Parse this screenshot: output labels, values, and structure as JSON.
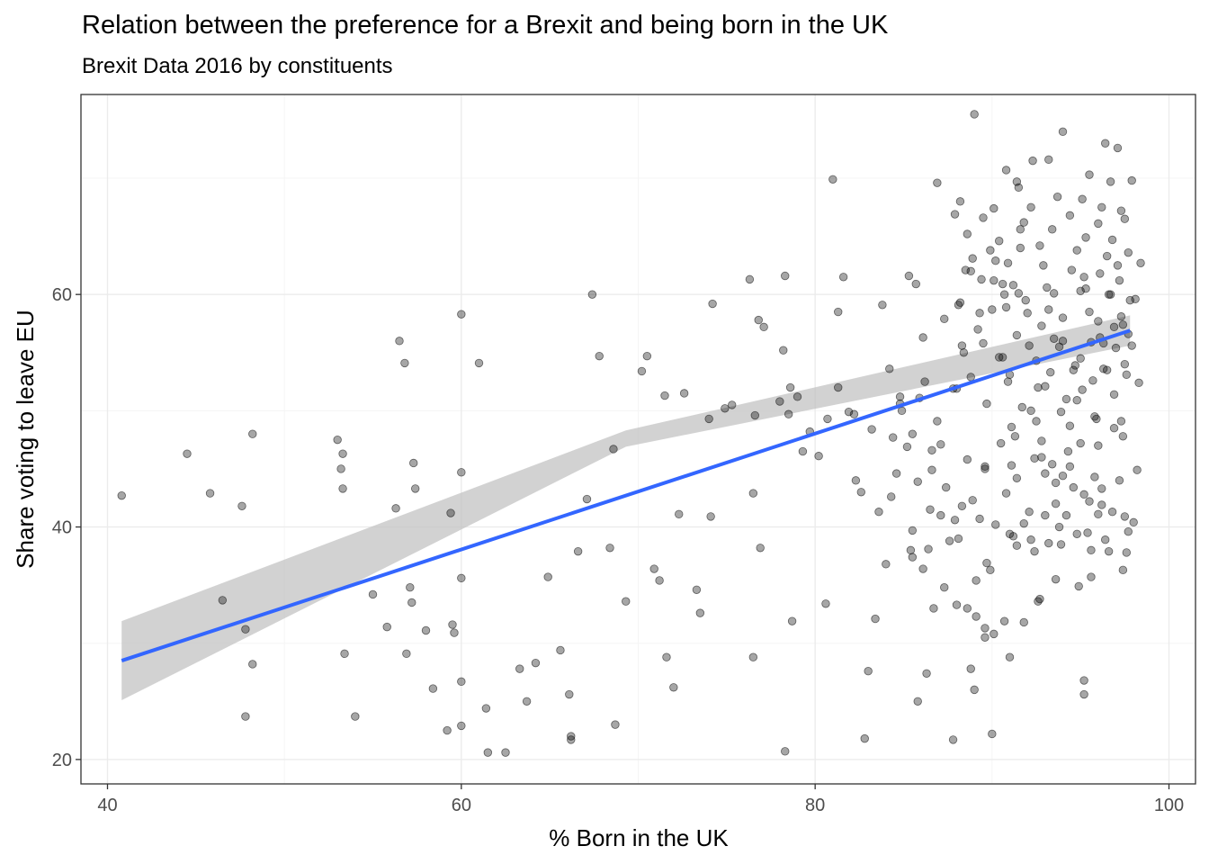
{
  "chart_data": {
    "type": "scatter",
    "title": "Relation between the preference for a Brexit and being born in the UK",
    "subtitle": "Brexit Data 2016 by constituents",
    "xlabel": "% Born in the UK",
    "ylabel": "Share voting to leave EU",
    "xlim": [
      38.5,
      101.5
    ],
    "ylim": [
      17.9,
      77.2
    ],
    "x_ticks": [
      40,
      60,
      80,
      100
    ],
    "y_ticks": [
      20,
      40,
      60
    ],
    "x_tick_labels": [
      "40",
      "60",
      "80",
      "100"
    ],
    "y_tick_labels": [
      "20",
      "40",
      "60"
    ],
    "grid": true,
    "legend": "none",
    "colors": {
      "points": "#000000",
      "points_opacity": 0.35,
      "trend_line": "#3366FF",
      "confidence_band": "#bfbfbf",
      "grid_major": "#ebebeb",
      "grid_minor": "#f5f5f5",
      "panel_border": "#333333"
    },
    "trend": {
      "method": "linear",
      "x_range": [
        40.8,
        97.8
      ],
      "y_start": 28.5,
      "y_end": 56.9,
      "se_low_start": 25.1,
      "se_high_start": 31.9,
      "se_low_mid": 46.9,
      "se_high_mid": 48.3,
      "se_low_end": 55.6,
      "se_high_end": 58.2
    },
    "points": [
      [
        40.8,
        42.7
      ],
      [
        44.5,
        46.3
      ],
      [
        45.8,
        42.9
      ],
      [
        46.5,
        33.7
      ],
      [
        47.6,
        41.8
      ],
      [
        47.8,
        31.2
      ],
      [
        47.8,
        23.7
      ],
      [
        48.2,
        48.0
      ],
      [
        48.2,
        28.2
      ],
      [
        53.0,
        47.5
      ],
      [
        53.3,
        46.3
      ],
      [
        53.2,
        45.0
      ],
      [
        53.3,
        43.3
      ],
      [
        53.4,
        29.1
      ],
      [
        54.0,
        23.7
      ],
      [
        55.0,
        34.2
      ],
      [
        55.8,
        31.4
      ],
      [
        56.3,
        41.6
      ],
      [
        56.5,
        56.0
      ],
      [
        56.8,
        54.1
      ],
      [
        56.9,
        29.1
      ],
      [
        57.1,
        34.8
      ],
      [
        57.2,
        33.5
      ],
      [
        57.3,
        45.5
      ],
      [
        57.4,
        43.3
      ],
      [
        58.0,
        31.1
      ],
      [
        58.4,
        26.1
      ],
      [
        59.2,
        22.5
      ],
      [
        59.4,
        41.2
      ],
      [
        59.5,
        31.6
      ],
      [
        59.6,
        30.9
      ],
      [
        60.0,
        58.3
      ],
      [
        60.0,
        44.7
      ],
      [
        60.0,
        35.6
      ],
      [
        60.0,
        26.7
      ],
      [
        60.0,
        22.9
      ],
      [
        61.0,
        54.1
      ],
      [
        61.4,
        24.4
      ],
      [
        61.5,
        20.6
      ],
      [
        62.5,
        20.6
      ],
      [
        63.3,
        27.8
      ],
      [
        63.7,
        25.0
      ],
      [
        64.2,
        28.3
      ],
      [
        64.9,
        35.7
      ],
      [
        65.6,
        29.4
      ],
      [
        66.1,
        25.6
      ],
      [
        66.2,
        22.0
      ],
      [
        66.2,
        21.7
      ],
      [
        66.6,
        37.9
      ],
      [
        67.1,
        42.4
      ],
      [
        67.4,
        60.0
      ],
      [
        67.8,
        54.7
      ],
      [
        68.4,
        38.2
      ],
      [
        68.6,
        46.7
      ],
      [
        68.7,
        23.0
      ],
      [
        69.3,
        33.6
      ],
      [
        70.2,
        53.4
      ],
      [
        70.5,
        54.7
      ],
      [
        70.9,
        36.4
      ],
      [
        71.2,
        35.4
      ],
      [
        71.5,
        51.3
      ],
      [
        71.6,
        28.8
      ],
      [
        72.0,
        26.2
      ],
      [
        72.3,
        41.1
      ],
      [
        72.6,
        51.5
      ],
      [
        73.3,
        34.6
      ],
      [
        73.5,
        32.6
      ],
      [
        74.0,
        49.3
      ],
      [
        74.1,
        40.9
      ],
      [
        74.2,
        59.2
      ],
      [
        74.9,
        50.2
      ],
      [
        75.3,
        50.5
      ],
      [
        76.3,
        61.3
      ],
      [
        76.5,
        42.9
      ],
      [
        76.6,
        49.6
      ],
      [
        76.5,
        28.8
      ],
      [
        76.8,
        57.8
      ],
      [
        76.9,
        38.2
      ],
      [
        77.1,
        57.2
      ],
      [
        78.0,
        50.8
      ],
      [
        78.2,
        55.2
      ],
      [
        78.3,
        61.6
      ],
      [
        78.3,
        20.7
      ],
      [
        78.5,
        49.7
      ],
      [
        78.6,
        52.0
      ],
      [
        78.7,
        31.9
      ],
      [
        79.0,
        51.2
      ],
      [
        79.3,
        46.5
      ],
      [
        79.7,
        48.2
      ],
      [
        80.2,
        46.1
      ],
      [
        80.6,
        33.4
      ],
      [
        80.7,
        49.3
      ],
      [
        81.0,
        69.9
      ],
      [
        81.3,
        52.0
      ],
      [
        81.3,
        58.5
      ],
      [
        81.6,
        61.5
      ],
      [
        81.9,
        49.9
      ],
      [
        82.2,
        49.7
      ],
      [
        82.3,
        44.0
      ],
      [
        82.6,
        43.0
      ],
      [
        82.8,
        21.8
      ],
      [
        83.0,
        27.6
      ],
      [
        83.2,
        48.4
      ],
      [
        83.4,
        32.1
      ],
      [
        83.6,
        41.3
      ],
      [
        83.8,
        59.1
      ],
      [
        84.2,
        53.6
      ],
      [
        84.4,
        47.7
      ],
      [
        84.8,
        51.2
      ],
      [
        84.8,
        50.6
      ],
      [
        85.4,
        38.0
      ],
      [
        85.3,
        61.6
      ],
      [
        85.5,
        37.4
      ],
      [
        85.5,
        39.7
      ],
      [
        85.7,
        60.9
      ],
      [
        85.8,
        25.0
      ],
      [
        85.9,
        51.1
      ],
      [
        86.1,
        56.3
      ],
      [
        86.2,
        52.5
      ],
      [
        86.3,
        27.4
      ],
      [
        86.5,
        41.5
      ],
      [
        86.6,
        46.6
      ],
      [
        86.9,
        69.6
      ],
      [
        87.1,
        41.0
      ],
      [
        87.3,
        57.9
      ],
      [
        87.8,
        21.7
      ],
      [
        87.8,
        51.9
      ],
      [
        88.0,
        51.9
      ],
      [
        88.2,
        59.3
      ],
      [
        88.3,
        55.6
      ],
      [
        88.5,
        62.1
      ],
      [
        88.6,
        33.0
      ],
      [
        88.8,
        27.8
      ],
      [
        88.8,
        62.0
      ],
      [
        89.0,
        26.0
      ],
      [
        89.1,
        32.3
      ],
      [
        89.3,
        58.4
      ],
      [
        89.5,
        55.8
      ],
      [
        89.6,
        45.0
      ],
      [
        89.6,
        30.5
      ],
      [
        89.7,
        36.9
      ],
      [
        89.9,
        63.8
      ],
      [
        90.0,
        22.2
      ],
      [
        90.1,
        61.2
      ],
      [
        90.2,
        62.9
      ],
      [
        90.4,
        54.6
      ],
      [
        90.6,
        60.9
      ],
      [
        90.7,
        60.0
      ],
      [
        90.8,
        58.9
      ],
      [
        91.0,
        53.1
      ],
      [
        91.1,
        48.6
      ],
      [
        91.3,
        47.8
      ],
      [
        91.4,
        69.7
      ],
      [
        91.5,
        60.1
      ],
      [
        91.6,
        64.0
      ],
      [
        91.6,
        65.6
      ],
      [
        91.8,
        31.8
      ],
      [
        91.9,
        59.5
      ],
      [
        92.1,
        55.6
      ],
      [
        92.2,
        50.0
      ],
      [
        92.4,
        45.9
      ],
      [
        92.5,
        49.1
      ],
      [
        92.6,
        52.0
      ],
      [
        92.8,
        57.3
      ],
      [
        93.0,
        44.6
      ],
      [
        93.2,
        58.7
      ],
      [
        93.3,
        53.3
      ],
      [
        93.5,
        60.1
      ],
      [
        93.6,
        43.8
      ],
      [
        93.8,
        55.5
      ],
      [
        94.0,
        56.0
      ],
      [
        94.2,
        51.0
      ],
      [
        94.4,
        45.2
      ],
      [
        94.6,
        53.5
      ],
      [
        94.8,
        50.9
      ],
      [
        95.0,
        54.5
      ],
      [
        95.2,
        61.5
      ],
      [
        95.3,
        60.5
      ],
      [
        95.5,
        58.5
      ],
      [
        95.7,
        52.6
      ],
      [
        95.9,
        49.3
      ],
      [
        96.1,
        56.3
      ],
      [
        96.3,
        55.8
      ],
      [
        96.5,
        53.5
      ],
      [
        96.7,
        60.0
      ],
      [
        96.9,
        57.2
      ],
      [
        97.1,
        62.5
      ],
      [
        97.3,
        58.1
      ],
      [
        97.5,
        54.0
      ],
      [
        97.7,
        56.6
      ],
      [
        97.9,
        55.6
      ],
      [
        98.1,
        59.6
      ],
      [
        98.3,
        52.4
      ],
      [
        98.4,
        62.7
      ],
      [
        98.2,
        44.9
      ],
      [
        98.0,
        40.4
      ],
      [
        97.6,
        37.8
      ],
      [
        97.4,
        36.3
      ],
      [
        97.2,
        44.0
      ],
      [
        96.8,
        41.3
      ],
      [
        96.6,
        37.9
      ],
      [
        96.2,
        43.3
      ],
      [
        96.0,
        41.1
      ],
      [
        95.8,
        44.3
      ],
      [
        95.6,
        35.7
      ],
      [
        95.4,
        39.5
      ],
      [
        95.2,
        42.8
      ],
      [
        95.0,
        47.2
      ],
      [
        94.8,
        39.4
      ],
      [
        94.6,
        43.4
      ],
      [
        94.4,
        48.7
      ],
      [
        94.2,
        41.0
      ],
      [
        94.0,
        44.4
      ],
      [
        93.8,
        40.0
      ],
      [
        93.6,
        42.0
      ],
      [
        93.4,
        45.4
      ],
      [
        93.2,
        38.6
      ],
      [
        93.0,
        41.0
      ],
      [
        92.8,
        47.4
      ],
      [
        92.6,
        33.6
      ],
      [
        92.4,
        37.9
      ],
      [
        92.1,
        41.3
      ],
      [
        91.8,
        40.3
      ],
      [
        91.4,
        44.2
      ],
      [
        91.2,
        39.2
      ],
      [
        91.0,
        28.8
      ],
      [
        90.8,
        42.9
      ],
      [
        90.5,
        47.2
      ],
      [
        90.2,
        40.2
      ],
      [
        89.9,
        36.3
      ],
      [
        89.6,
        45.2
      ],
      [
        89.3,
        40.7
      ],
      [
        89.1,
        35.4
      ],
      [
        88.9,
        42.3
      ],
      [
        88.6,
        45.8
      ],
      [
        88.3,
        41.8
      ],
      [
        88.1,
        39.0
      ],
      [
        87.9,
        40.6
      ],
      [
        87.6,
        38.8
      ],
      [
        87.4,
        43.4
      ],
      [
        87.1,
        47.1
      ],
      [
        86.9,
        49.1
      ],
      [
        86.6,
        44.9
      ],
      [
        86.4,
        38.1
      ],
      [
        86.1,
        36.4
      ],
      [
        85.8,
        43.9
      ],
      [
        85.5,
        48.0
      ],
      [
        85.2,
        46.9
      ],
      [
        84.9,
        50.0
      ],
      [
        84.6,
        44.6
      ],
      [
        84.3,
        42.6
      ],
      [
        84.0,
        36.8
      ],
      [
        89.0,
        75.5
      ],
      [
        94.0,
        74.0
      ],
      [
        93.2,
        71.6
      ],
      [
        92.3,
        71.5
      ],
      [
        96.4,
        73.0
      ],
      [
        97.1,
        72.6
      ],
      [
        90.8,
        70.7
      ],
      [
        95.5,
        70.3
      ],
      [
        96.7,
        69.7
      ],
      [
        97.9,
        69.8
      ],
      [
        91.5,
        69.2
      ],
      [
        93.7,
        68.4
      ],
      [
        95.1,
        68.2
      ],
      [
        96.2,
        67.5
      ],
      [
        97.3,
        67.2
      ],
      [
        88.2,
        68.0
      ],
      [
        90.1,
        67.4
      ],
      [
        92.2,
        67.5
      ],
      [
        94.4,
        66.8
      ],
      [
        96.0,
        66.1
      ],
      [
        97.5,
        66.5
      ],
      [
        87.9,
        66.9
      ],
      [
        89.5,
        66.6
      ],
      [
        91.8,
        66.2
      ],
      [
        93.4,
        65.6
      ],
      [
        95.3,
        64.9
      ],
      [
        96.8,
        64.7
      ],
      [
        88.6,
        65.2
      ],
      [
        90.4,
        64.6
      ],
      [
        92.7,
        64.2
      ],
      [
        94.8,
        63.8
      ],
      [
        96.5,
        63.3
      ],
      [
        97.7,
        63.6
      ],
      [
        88.9,
        63.1
      ],
      [
        90.9,
        62.7
      ],
      [
        92.9,
        62.5
      ],
      [
        94.5,
        62.1
      ],
      [
        96.1,
        61.8
      ],
      [
        97.2,
        61.2
      ],
      [
        89.4,
        61.3
      ],
      [
        91.2,
        60.8
      ],
      [
        93.1,
        60.6
      ],
      [
        95.0,
        60.3
      ],
      [
        96.6,
        60.0
      ],
      [
        97.8,
        59.5
      ],
      [
        88.1,
        59.1
      ],
      [
        90.0,
        58.7
      ],
      [
        92.0,
        58.4
      ],
      [
        94.0,
        58.0
      ],
      [
        96.0,
        57.7
      ],
      [
        97.4,
        57.4
      ],
      [
        89.2,
        57.0
      ],
      [
        91.4,
        56.5
      ],
      [
        93.5,
        56.2
      ],
      [
        95.6,
        55.9
      ],
      [
        97.0,
        55.4
      ],
      [
        88.4,
        55.0
      ],
      [
        90.6,
        54.6
      ],
      [
        92.5,
        54.3
      ],
      [
        94.7,
        53.9
      ],
      [
        96.3,
        53.6
      ],
      [
        97.6,
        53.1
      ],
      [
        88.8,
        52.9
      ],
      [
        90.9,
        52.5
      ],
      [
        93.0,
        52.1
      ],
      [
        95.1,
        51.8
      ],
      [
        96.9,
        51.4
      ],
      [
        89.7,
        50.6
      ],
      [
        91.7,
        50.3
      ],
      [
        93.9,
        49.9
      ],
      [
        95.8,
        49.5
      ],
      [
        97.3,
        49.1
      ],
      [
        95.2,
        26.8
      ],
      [
        95.2,
        25.6
      ],
      [
        96.9,
        48.5
      ],
      [
        97.4,
        47.8
      ],
      [
        96.0,
        47.0
      ],
      [
        94.3,
        46.5
      ],
      [
        92.8,
        46.0
      ],
      [
        91.1,
        45.3
      ],
      [
        93.6,
        35.5
      ],
      [
        94.9,
        34.9
      ],
      [
        92.7,
        33.8
      ],
      [
        90.1,
        30.8
      ],
      [
        90.7,
        31.9
      ],
      [
        89.6,
        31.3
      ],
      [
        88.0,
        33.3
      ],
      [
        87.3,
        34.8
      ],
      [
        86.7,
        33.0
      ],
      [
        91.0,
        39.4
      ],
      [
        91.4,
        38.4
      ],
      [
        92.2,
        38.9
      ],
      [
        93.9,
        38.5
      ],
      [
        95.6,
        38.0
      ],
      [
        96.4,
        38.9
      ],
      [
        97.7,
        39.6
      ],
      [
        97.5,
        40.9
      ],
      [
        96.2,
        41.9
      ],
      [
        95.5,
        42.2
      ]
    ]
  }
}
